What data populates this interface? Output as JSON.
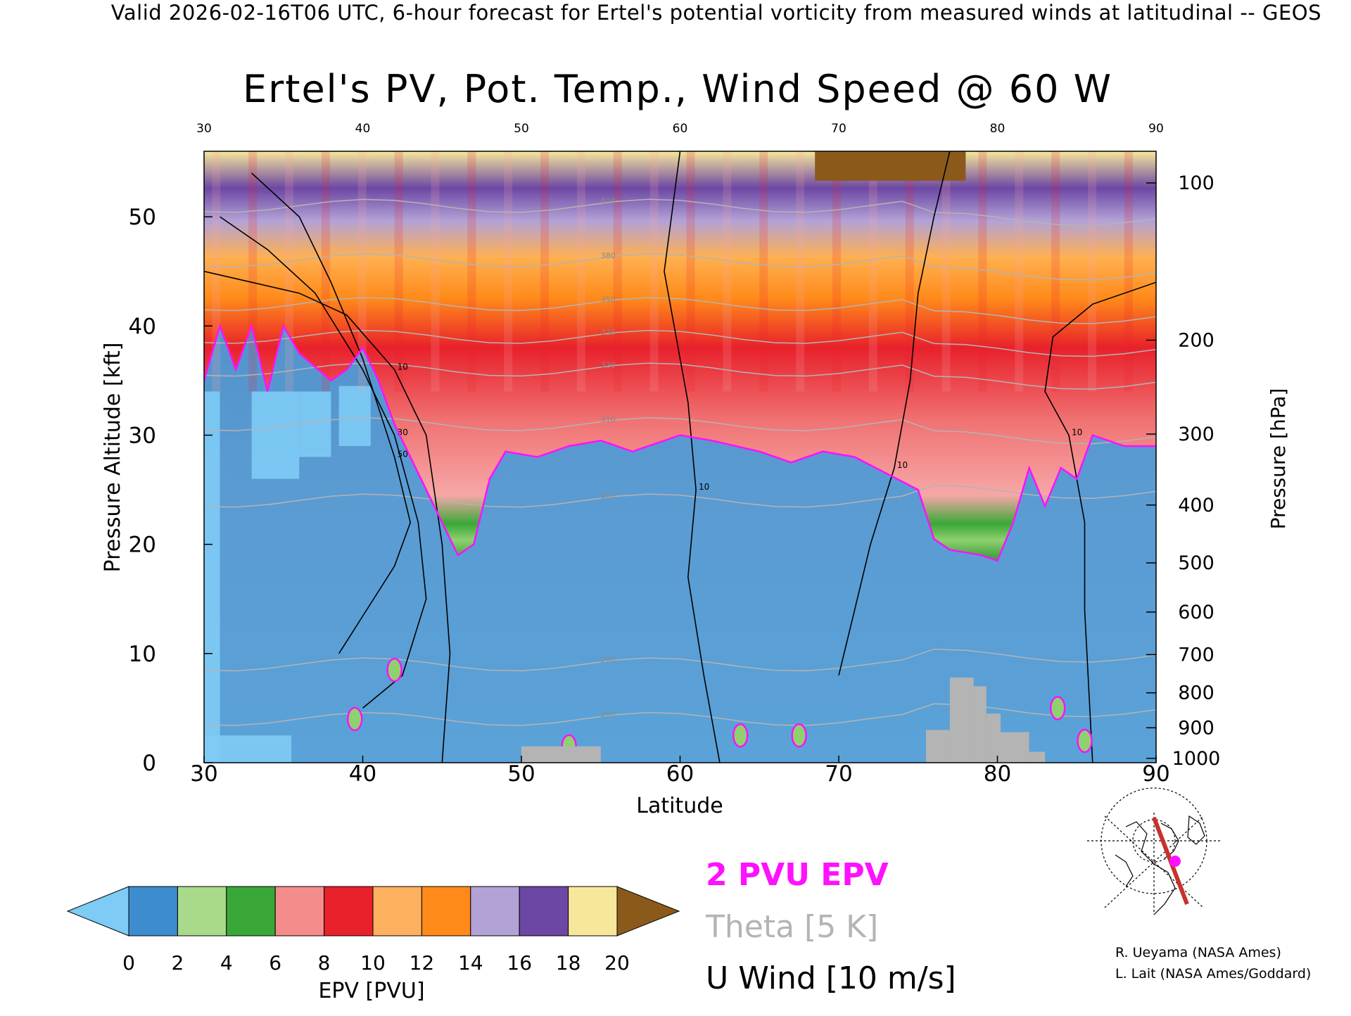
{
  "header": "Valid 2026-02-16T06 UTC, 6-hour forecast for Ertel's potential vorticity from measured winds at latitudinal -- GEOS",
  "chart_data": {
    "type": "heatmap",
    "title": "Ertel's PV, Pot. Temp., Wind Speed @ 60 W",
    "xlabel": "Latitude",
    "ylabel_left": "Pressure Altitude [kft]",
    "ylabel_right": "Pressure [hPa]",
    "xlim": [
      30,
      90
    ],
    "ylim": [
      0,
      56
    ],
    "x_ticks": [
      30,
      40,
      50,
      60,
      70,
      80,
      90
    ],
    "x_top_ticks": [
      30,
      40,
      50,
      60,
      70,
      80,
      90
    ],
    "y_ticks": [
      0,
      10,
      20,
      30,
      40,
      50
    ],
    "pressure_ticks": [
      {
        "hpa": 100,
        "kft": 53.1
      },
      {
        "hpa": 200,
        "kft": 38.7
      },
      {
        "hpa": 300,
        "kft": 30.1
      },
      {
        "hpa": 400,
        "kft": 23.6
      },
      {
        "hpa": 500,
        "kft": 18.3
      },
      {
        "hpa": 600,
        "kft": 13.8
      },
      {
        "hpa": 700,
        "kft": 9.9
      },
      {
        "hpa": 800,
        "kft": 6.4
      },
      {
        "hpa": 900,
        "kft": 3.2
      },
      {
        "hpa": 1000,
        "kft": 0.4
      }
    ],
    "colorbar": {
      "label": "EPV [PVU]",
      "ticks": [
        0,
        2,
        4,
        6,
        8,
        10,
        12,
        14,
        16,
        18,
        20
      ],
      "colors": [
        "#7ecbf5",
        "#3e8cd0",
        "#a9d98a",
        "#3aa838",
        "#f58c8c",
        "#e8212b",
        "#fdb060",
        "#ff8a1a",
        "#b3a2d6",
        "#6c47a4",
        "#f7e79a",
        "#8b5a1b"
      ]
    },
    "epv_2pvu_boundary": [
      [
        30,
        35
      ],
      [
        31,
        40
      ],
      [
        32,
        36
      ],
      [
        33,
        40
      ],
      [
        34,
        34
      ],
      [
        35,
        40
      ],
      [
        36,
        37.5
      ],
      [
        38,
        35
      ],
      [
        39,
        36
      ],
      [
        40,
        38
      ],
      [
        41,
        35
      ],
      [
        42,
        31
      ],
      [
        43,
        28
      ],
      [
        44,
        25
      ],
      [
        45,
        22
      ],
      [
        46,
        19
      ],
      [
        47,
        20
      ],
      [
        48,
        26
      ],
      [
        49,
        28.5
      ],
      [
        51,
        28
      ],
      [
        53,
        29
      ],
      [
        55,
        29.5
      ],
      [
        57,
        28.5
      ],
      [
        60,
        30
      ],
      [
        62,
        29.5
      ],
      [
        65,
        28.5
      ],
      [
        67,
        27.5
      ],
      [
        69,
        28.5
      ],
      [
        71,
        28
      ],
      [
        73,
        26.5
      ],
      [
        75,
        25
      ],
      [
        76,
        20.5
      ],
      [
        77,
        19.5
      ],
      [
        79,
        19
      ],
      [
        80,
        18.5
      ],
      [
        81,
        22
      ],
      [
        82,
        27
      ],
      [
        83,
        23.5
      ],
      [
        84,
        27
      ],
      [
        85,
        26
      ],
      [
        86,
        30
      ],
      [
        88,
        29
      ],
      [
        90,
        29
      ]
    ],
    "epv_2pvu_islands": [
      {
        "x": 42,
        "y": 8.5
      },
      {
        "x": 39.5,
        "y": 4
      },
      {
        "x": 67.5,
        "y": 2.5
      },
      {
        "x": 83.8,
        "y": 5
      },
      {
        "x": 85.5,
        "y": 2
      },
      {
        "x": 63.8,
        "y": 2.5
      },
      {
        "x": 53,
        "y": 1.5
      }
    ],
    "u_wind_contours": [
      {
        "label": "10",
        "points": [
          [
            30,
            45
          ],
          [
            33,
            44
          ],
          [
            36,
            43
          ],
          [
            39,
            41
          ],
          [
            42,
            36
          ],
          [
            44,
            30
          ],
          [
            45,
            20
          ],
          [
            45.5,
            10
          ],
          [
            45,
            0
          ]
        ]
      },
      {
        "label": "30",
        "points": [
          [
            31,
            50
          ],
          [
            34,
            47
          ],
          [
            37,
            43
          ],
          [
            40,
            36
          ],
          [
            42,
            30
          ],
          [
            43.5,
            22
          ],
          [
            44,
            15
          ],
          [
            42.5,
            8
          ],
          [
            40,
            5
          ]
        ]
      },
      {
        "label": "50",
        "points": [
          [
            33,
            54
          ],
          [
            36,
            50
          ],
          [
            38,
            44
          ],
          [
            40,
            37
          ],
          [
            42,
            28
          ],
          [
            43,
            22
          ],
          [
            42,
            18
          ],
          [
            38.5,
            10
          ]
        ]
      },
      {
        "label": "10",
        "points": [
          [
            60,
            56
          ],
          [
            59,
            45
          ],
          [
            60.5,
            33
          ],
          [
            61,
            25
          ],
          [
            60.5,
            17
          ],
          [
            61.5,
            8
          ],
          [
            62.5,
            0
          ]
        ]
      },
      {
        "label": "10",
        "points": [
          [
            90,
            44
          ],
          [
            86,
            42
          ],
          [
            83.5,
            39
          ],
          [
            83,
            34
          ],
          [
            84.5,
            30
          ],
          [
            85.5,
            22
          ],
          [
            85.5,
            14
          ],
          [
            86,
            0
          ]
        ]
      },
      {
        "label": "10",
        "points": [
          [
            77,
            56
          ],
          [
            76,
            50
          ],
          [
            75,
            43
          ],
          [
            74.5,
            35
          ],
          [
            73.5,
            27
          ],
          [
            72,
            20
          ],
          [
            71,
            14
          ],
          [
            70,
            8
          ]
        ]
      }
    ],
    "theta_isentropes": [
      {
        "label": "260",
        "kft": 4
      },
      {
        "label": "280",
        "kft": 9
      },
      {
        "label": "300",
        "kft": 24
      },
      {
        "label": "310",
        "kft": 31
      },
      {
        "label": "320",
        "kft": 36
      },
      {
        "label": "330",
        "kft": 39
      },
      {
        "label": "350",
        "kft": 42
      },
      {
        "label": "380",
        "kft": 46
      },
      {
        "label": "410",
        "kft": 51
      }
    ],
    "terrain": [
      {
        "x0": 50,
        "x1": 55,
        "kft": 1.5
      },
      {
        "x0": 75.5,
        "x1": 77,
        "kft": 3
      },
      {
        "x0": 77,
        "x1": 78.5,
        "kft": 7.8
      },
      {
        "x0": 78.5,
        "x1": 79.3,
        "kft": 7
      },
      {
        "x0": 79.3,
        "x1": 80.2,
        "kft": 4.5
      },
      {
        "x0": 80.2,
        "x1": 82,
        "kft": 2.8
      },
      {
        "x0": 82,
        "x1": 83,
        "kft": 1
      }
    ]
  },
  "legend": {
    "epv_line": "2 PVU EPV",
    "theta": "Theta [5 K]",
    "u_wind": "U Wind [10 m/s]",
    "colors": {
      "epv": "#ff10ff",
      "theta": "#b4b4b4",
      "wind": "#000000"
    }
  },
  "credits": [
    "R. Ueyama (NASA Ames)",
    "L. Lait (NASA Ames/Goddard)"
  ]
}
